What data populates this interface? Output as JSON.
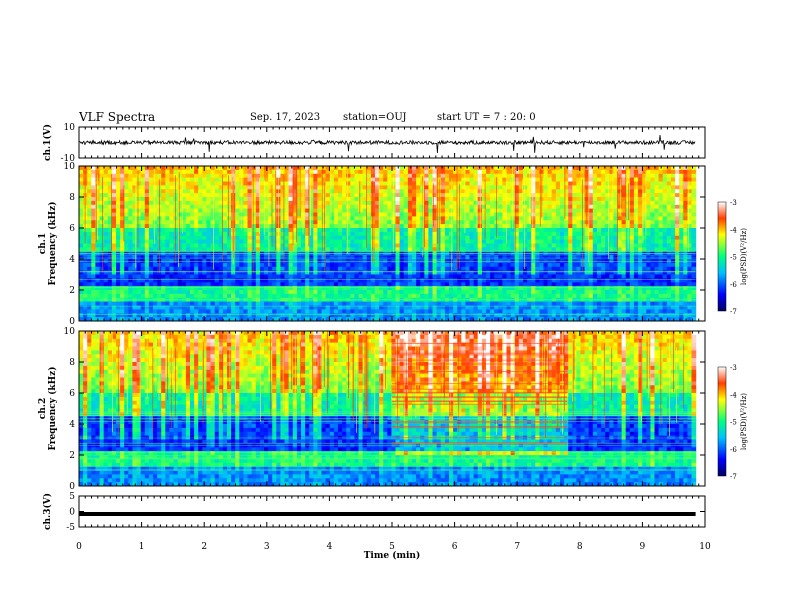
{
  "header": {
    "title": "VLF Spectra",
    "date": "Sep. 17, 2023",
    "station": "station=OUJ",
    "start": "start UT =  7 : 20: 0"
  },
  "chart_data": [
    {
      "type": "line",
      "panel": "ch1-waveform",
      "ylabel": "ch.1(V)",
      "ylim": [
        -10,
        10
      ],
      "yticks": [
        "10",
        "-10"
      ],
      "xlim": [
        0,
        10
      ],
      "data_end_min": 9.85,
      "baseline_v": 0
    },
    {
      "type": "heatmap",
      "panel": "ch1-spectrogram",
      "ylabel": "ch.1\nFrequency (kHz)",
      "ylim": [
        0,
        10
      ],
      "yticks": [
        "0",
        "2",
        "4",
        "6",
        "8",
        "10"
      ],
      "xlim": [
        0,
        10
      ],
      "colorbar": {
        "label": "log(PSD)(V²/Hz)",
        "range": [
          -7,
          -3
        ],
        "ticks": [
          "-3",
          "-4",
          "-5",
          "-6",
          "-7"
        ]
      }
    },
    {
      "type": "heatmap",
      "panel": "ch2-spectrogram",
      "ylabel": "ch.2\nFrequency (kHz)",
      "ylim": [
        0,
        10
      ],
      "yticks": [
        "0",
        "2",
        "4",
        "6",
        "8",
        "10"
      ],
      "xlim": [
        0,
        10
      ],
      "transmitter_burst_min": [
        5.0,
        7.8
      ],
      "colorbar": {
        "label": "log(PSD)(V²/Hz)",
        "range": [
          -7,
          -3
        ],
        "ticks": [
          "-3",
          "-4",
          "-5",
          "-6",
          "-7"
        ]
      }
    },
    {
      "type": "line",
      "panel": "ch3-waveform",
      "ylabel": "ch.3(V)",
      "ylim": [
        -5,
        5
      ],
      "yticks": [
        "5",
        "0",
        "-5"
      ],
      "xlim": [
        0,
        10
      ],
      "values": [
        -0.8,
        -0.8
      ]
    }
  ],
  "xaxis": {
    "label": "Time (min)",
    "ticks": [
      "0",
      "1",
      "2",
      "3",
      "4",
      "5",
      "6",
      "7",
      "8",
      "9",
      "10"
    ]
  },
  "colors": {
    "min": "#000080",
    "low": "#0000ff",
    "mid": "#00ff80",
    "high": "#ffff00",
    "max": "#ff0000"
  }
}
